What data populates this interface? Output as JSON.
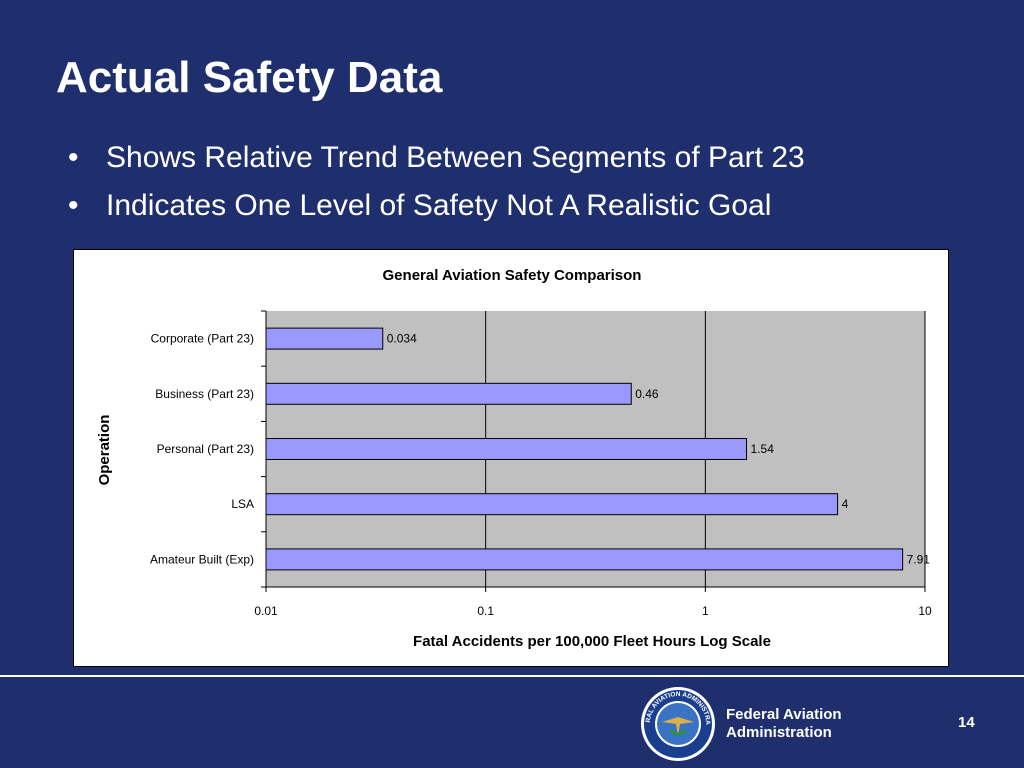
{
  "slide": {
    "title": "Actual Safety Data",
    "bullets": [
      "Shows Relative Trend Between Segments of Part 23",
      "Indicates One Level of Safety Not A Realistic Goal"
    ],
    "bullet_glyph": "•",
    "page_number": "14"
  },
  "footer": {
    "agency_line1": "Federal Aviation",
    "agency_line2": "Administration",
    "seal_text": "FEDERAL AVIATION ADMINISTRATION"
  },
  "colors": {
    "background": "#1f2f6e",
    "bar_fill": "#9999ff",
    "plot_area": "#c0c0c0"
  },
  "chart_data": {
    "type": "bar",
    "orientation": "horizontal",
    "title": "General Aviation Safety Comparison",
    "xlabel": "Fatal Accidents per 100,000 Fleet Hours Log Scale",
    "ylabel": "Operation",
    "x_scale": "log",
    "xlim": [
      0.01,
      10
    ],
    "x_ticks": [
      0.01,
      0.1,
      1,
      10
    ],
    "x_tick_labels": [
      "0.01",
      "0.1",
      "1",
      "10"
    ],
    "grid": "vertical major gridlines",
    "legend": "none",
    "categories": [
      "Corporate (Part 23)",
      "Business (Part 23)",
      "Personal (Part 23)",
      "LSA",
      "Amateur Built (Exp)"
    ],
    "values": [
      0.034,
      0.46,
      1.54,
      4,
      7.91
    ],
    "data_labels": [
      "0.034",
      "0.46",
      "1.54",
      "4",
      "7.91"
    ]
  }
}
